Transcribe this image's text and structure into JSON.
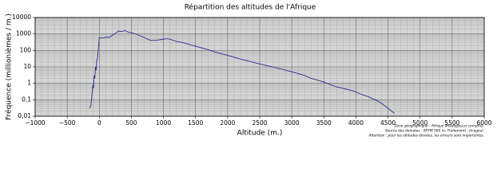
{
  "chart_data": {
    "type": "line",
    "title": "Répartition des altitudes de l'Afrique",
    "x_label": "Altitude (m.)",
    "y_label": "Fréquence (millionièmes / m.)",
    "notes": [
      "Zone géographique : Afrique (Madagascar compris).",
      "Source des données : SRTM 500 m; Traitement : Imageul.",
      "Attention : pour les altitudes élevées, les erreurs sont importantes."
    ],
    "log_scale_y": true,
    "grid": true,
    "minor_grid": true,
    "xlim": [
      -1000,
      6000
    ],
    "xticks": [
      {
        "value": -1000,
        "label": "−1000"
      },
      {
        "value": -500,
        "label": "−500"
      },
      0,
      500,
      1000,
      1500,
      2000,
      2500,
      3000,
      3500,
      4000,
      4500,
      5000,
      5500,
      6000
    ],
    "ylim": [
      0.01,
      10000
    ],
    "yticks": [
      {
        "value": 0.01,
        "label": "0,01"
      },
      {
        "value": 0.1,
        "label": "0,1"
      },
      1,
      10,
      100,
      1000,
      10000
    ],
    "x": [
      -150,
      -130,
      -110,
      -100,
      -90,
      -80,
      -70,
      -60,
      -50,
      -40,
      -30,
      0,
      50,
      100,
      150,
      200,
      250,
      300,
      350,
      400,
      450,
      500,
      600,
      700,
      800,
      900,
      1000,
      1050,
      1100,
      1200,
      1300,
      1500,
      1700,
      1800,
      2000,
      2200,
      2500,
      2700,
      3000,
      3200,
      3300,
      3500,
      3700,
      3900,
      4000,
      4100,
      4200,
      4300,
      4400,
      4500,
      4600
    ],
    "series": [
      {
        "name": "Afrique",
        "color": "#2b2b8f",
        "values": [
          0.03,
          0.05,
          0.3,
          0.8,
          0.5,
          3,
          2,
          10,
          6,
          25,
          30,
          600,
          550,
          650,
          600,
          800,
          1100,
          1500,
          1400,
          1600,
          1300,
          1200,
          900,
          600,
          400,
          420,
          480,
          520,
          480,
          350,
          300,
          180,
          110,
          80,
          50,
          30,
          15,
          10,
          5,
          3,
          2,
          1.2,
          0.6,
          0.4,
          0.3,
          0.2,
          0.15,
          0.1,
          0.06,
          0.03,
          0.015
        ]
      }
    ]
  }
}
